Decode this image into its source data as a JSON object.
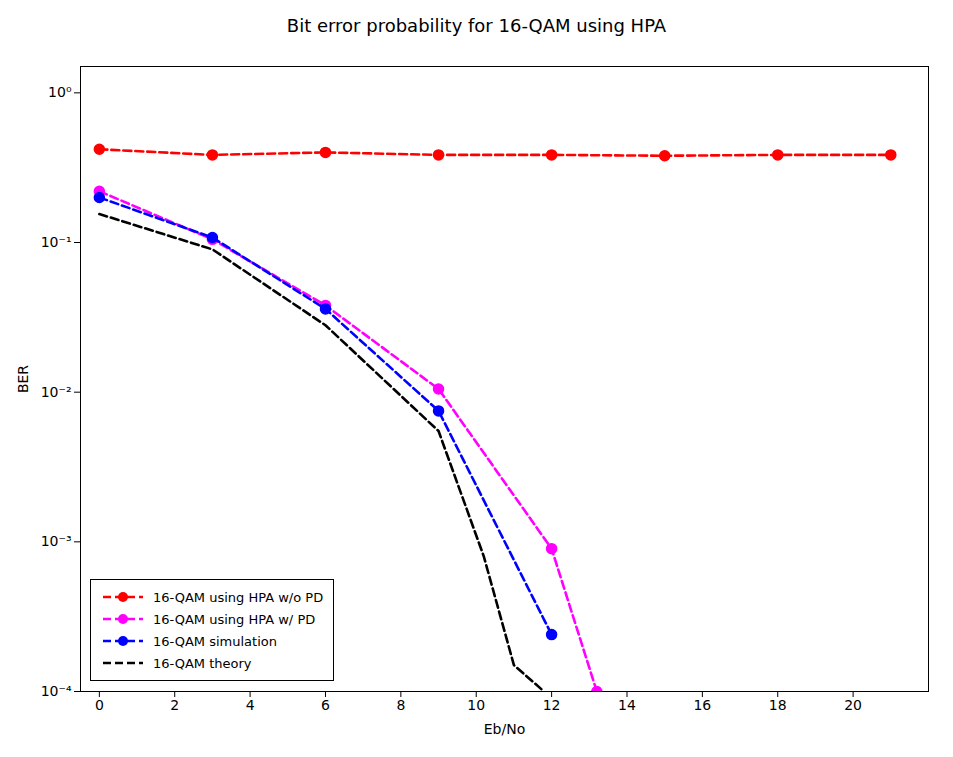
{
  "chart_data": {
    "type": "line",
    "title": "Bit error probability for 16-QAM using HPA",
    "xlabel": "Eb/No",
    "ylabel": "BER",
    "log": "y",
    "grid": false,
    "legend": "lower left",
    "xlim": [
      -0.5,
      22
    ],
    "ylim": [
      0.0001,
      1.5
    ],
    "xticks": [
      0,
      2,
      4,
      6,
      8,
      10,
      12,
      14,
      16,
      18,
      20
    ],
    "yticks": [
      {
        "value": 0.0001,
        "label": "10⁻⁴"
      },
      {
        "value": 0.001,
        "label": "10⁻³"
      },
      {
        "value": 0.01,
        "label": "10⁻²"
      },
      {
        "value": 0.1,
        "label": "10⁻¹"
      },
      {
        "value": 1,
        "label": "10⁰"
      }
    ],
    "series": [
      {
        "name": "16-QAM using HPA w/o PD",
        "color": "#ff0000",
        "marker": "o",
        "line_style": "dashed",
        "x": [
          0,
          3,
          6,
          9,
          12,
          15,
          18,
          21
        ],
        "values": [
          0.42,
          0.385,
          0.4,
          0.385,
          0.385,
          0.38,
          0.385,
          0.385
        ]
      },
      {
        "name": "16-QAM using HPA w/ PD",
        "color": "#ff00ff",
        "marker": "o",
        "line_style": "dashed",
        "x": [
          0,
          3,
          6,
          9,
          12,
          13.2
        ],
        "values": [
          0.22,
          0.105,
          0.038,
          0.0105,
          0.0009,
          0.0001
        ]
      },
      {
        "name": "16-QAM simulation",
        "color": "#0000ff",
        "marker": "o",
        "line_style": "dashed",
        "x": [
          0,
          3,
          6,
          9,
          12
        ],
        "values": [
          0.2,
          0.108,
          0.036,
          0.0075,
          0.00024
        ]
      },
      {
        "name": "16-QAM theory",
        "color": "#000000",
        "line_style": "dashed",
        "x": [
          0,
          3,
          6,
          9,
          10.2,
          11.0,
          11.8
        ],
        "values": [
          0.155,
          0.09,
          0.028,
          0.0055,
          0.0008,
          0.00015,
          0.0001
        ]
      }
    ]
  }
}
